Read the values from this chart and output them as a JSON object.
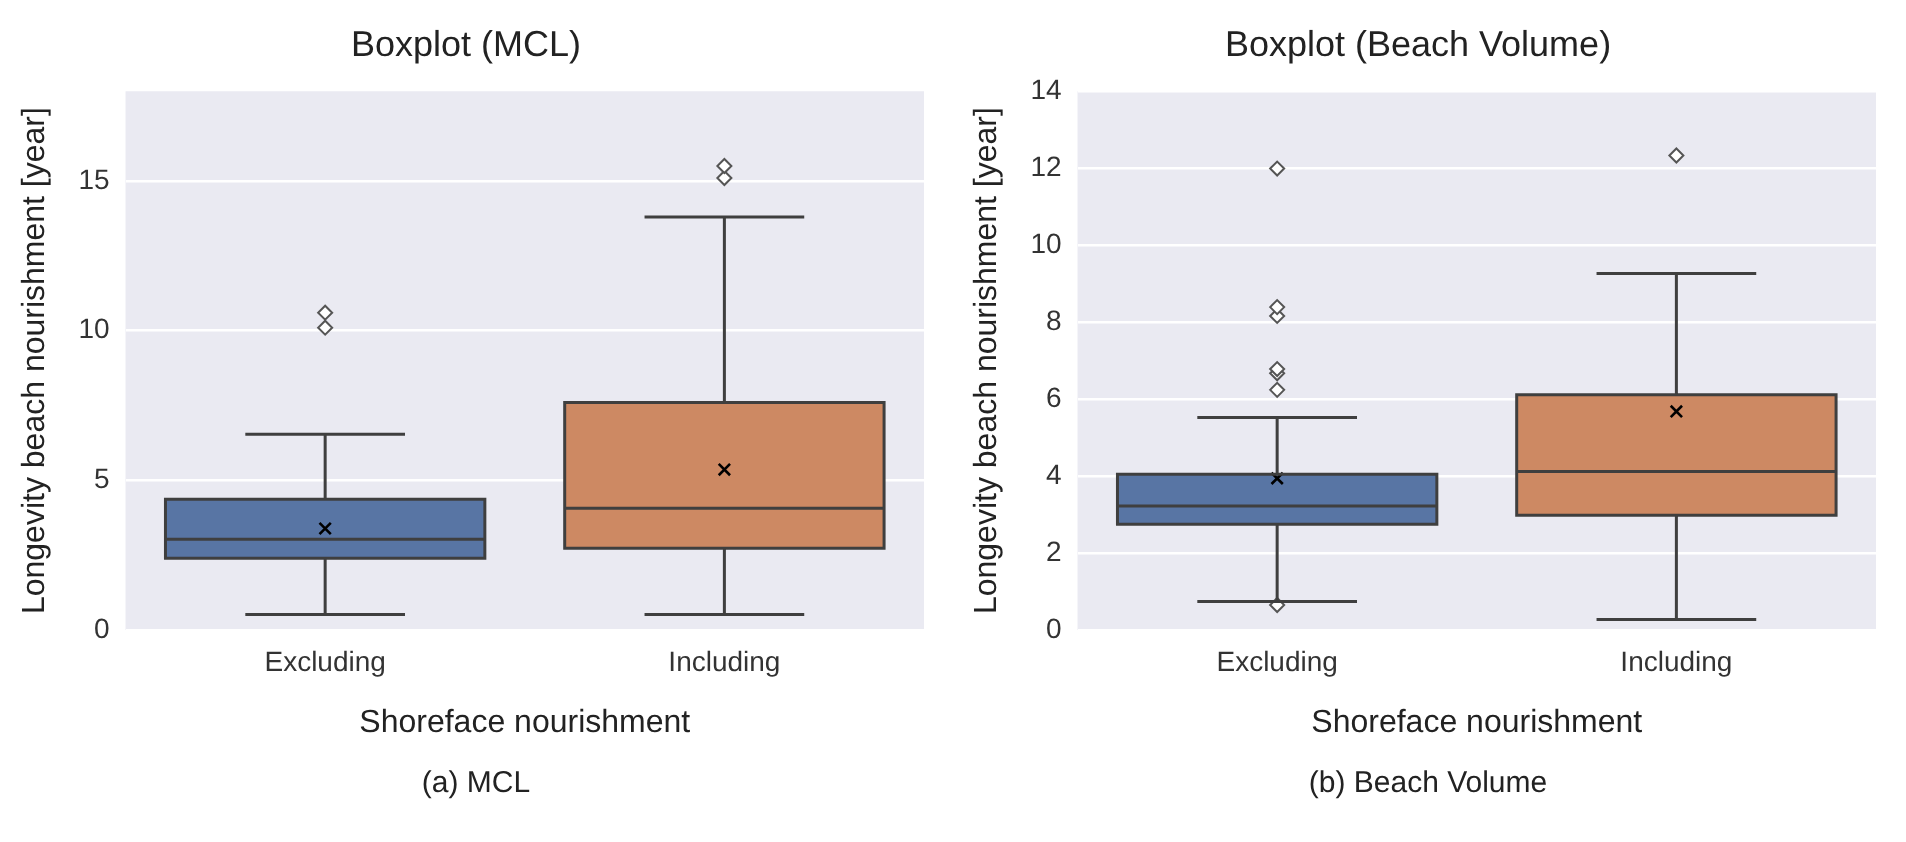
{
  "chart_data": [
    {
      "type": "box",
      "title": "Boxplot (MCL)",
      "xlabel": "Shoreface nourishment",
      "ylabel": "Longevity beach nourishment [year]",
      "categories": [
        "Excluding",
        "Including"
      ],
      "colors": [
        "#5875a4",
        "#cd8963"
      ],
      "ylim": [
        0,
        18
      ],
      "yticks": [
        0,
        5,
        10,
        15
      ],
      "grid": "y",
      "boxes": [
        {
          "low": 0.52,
          "q1": 2.4,
          "median": 3.03,
          "q3": 4.37,
          "high": 6.54,
          "mean": 3.39,
          "outliers": [
            10.1,
            10.6
          ]
        },
        {
          "low": 0.52,
          "q1": 2.73,
          "median": 4.07,
          "q3": 7.6,
          "high": 13.8,
          "mean": 5.36,
          "outliers": [
            15.1,
            15.5
          ]
        }
      ],
      "annotations": [
        "(a) MCL"
      ]
    },
    {
      "type": "box",
      "title": "Boxplot (Beach Volume)",
      "xlabel": "Shoreface nourishment",
      "ylabel": "Longevity beach nourishment [year]",
      "categories": [
        "Excluding",
        "Including"
      ],
      "colors": [
        "#5875a4",
        "#cd8963"
      ],
      "ylim": [
        0,
        14
      ],
      "yticks": [
        0,
        2,
        4,
        6,
        8,
        10,
        12,
        14
      ],
      "grid": "y",
      "boxes": [
        {
          "low": 0.74,
          "q1": 2.75,
          "median": 3.22,
          "q3": 4.05,
          "high": 5.52,
          "mean": 3.94,
          "outliers": [
            0.65,
            6.24,
            6.67,
            6.78,
            8.16,
            8.39,
            11.99
          ]
        },
        {
          "low": 0.27,
          "q1": 2.98,
          "median": 4.12,
          "q3": 6.11,
          "high": 9.26,
          "mean": 5.68,
          "outliers": [
            12.33
          ]
        }
      ],
      "annotations": [
        "(b) Beach Volume"
      ]
    }
  ]
}
